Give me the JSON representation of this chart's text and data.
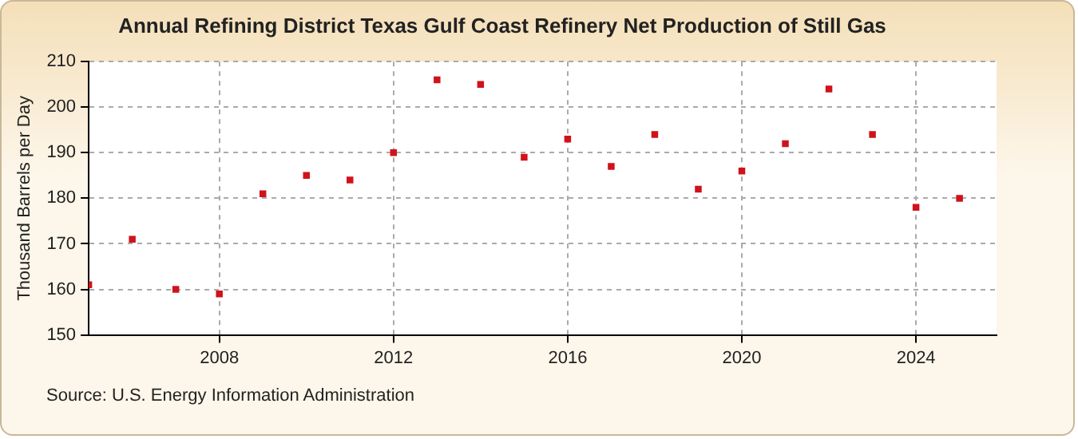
{
  "chart_data": {
    "type": "scatter",
    "title": "Annual Refining District Texas Gulf Coast Refinery Net Production of Still Gas",
    "ylabel": "Thousand Barrels per Day",
    "annotations": [
      "Source: U.S. Energy Information Administration"
    ],
    "x": [
      2005,
      2006,
      2007,
      2008,
      2009,
      2010,
      2011,
      2012,
      2013,
      2014,
      2015,
      2016,
      2017,
      2018,
      2019,
      2020,
      2021,
      2022,
      2023,
      2024,
      2025
    ],
    "series": [
      {
        "color": "#d0121b",
        "values": [
          161,
          171,
          160,
          159,
          181,
          185,
          184,
          190,
          206,
          205,
          189,
          193,
          187,
          194,
          182,
          186,
          192,
          204,
          194,
          178,
          180
        ]
      }
    ],
    "xlim": [
      2005,
      2025.85
    ],
    "xticks": [
      2008,
      2012,
      2016,
      2020,
      2024
    ],
    "ylim": [
      150,
      210
    ],
    "yticks": [
      150,
      160,
      170,
      180,
      190,
      200,
      210
    ],
    "grid": true,
    "legend": false,
    "marker": "square"
  }
}
